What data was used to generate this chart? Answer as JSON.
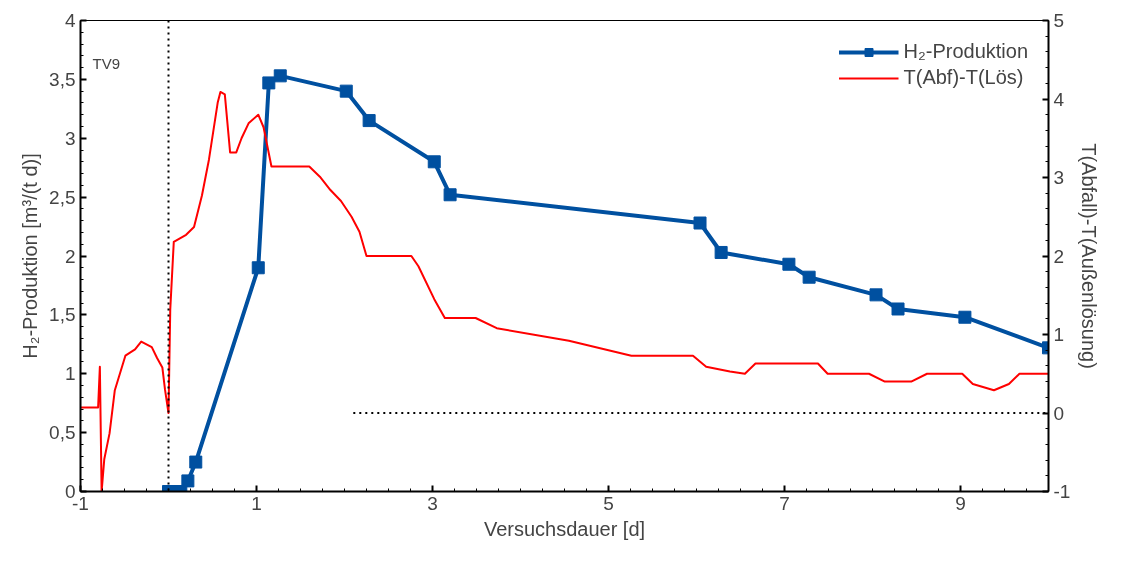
{
  "chart_data": {
    "type": "line",
    "xlabel": "Versuchsdauer [d]",
    "ylabel": "H₂-Produktion [m³/(t d)]",
    "y2label": "T(Abfall)-T(Außenlösung)",
    "annotations": [
      "TV9"
    ],
    "xlim": [
      -1,
      10
    ],
    "xticks": [
      -1,
      1,
      3,
      5,
      7,
      9
    ],
    "ylim": [
      0,
      4
    ],
    "yticks": [
      {
        "value": 0,
        "label": "0"
      },
      {
        "value": 0.5,
        "label": "0,5"
      },
      {
        "value": 1,
        "label": "1"
      },
      {
        "value": 1.5,
        "label": "1,5"
      },
      {
        "value": 2,
        "label": "2"
      },
      {
        "value": 2.5,
        "label": "2,5"
      },
      {
        "value": 3,
        "label": "3"
      },
      {
        "value": 3.5,
        "label": "3,5"
      },
      {
        "value": 4,
        "label": "4"
      }
    ],
    "y2lim": [
      -1,
      5
    ],
    "y2ticks": [
      -1,
      0,
      1,
      2,
      3,
      4,
      5
    ],
    "grid": false,
    "legend": "top right",
    "ref_lines": [
      {
        "axis": "x",
        "value": 0,
        "label": null,
        "color": "#000000",
        "line_style": "dotted"
      }
    ],
    "series": [
      {
        "name": "H₂-Produktion",
        "color": "#0050a0",
        "marker": "square",
        "x": [
          0,
          0.05,
          0.14,
          0.22,
          0.31,
          1.02,
          1.14,
          1.27,
          2.02,
          2.28,
          3.02,
          3.2,
          6.04,
          6.28,
          7.05,
          7.28,
          8.04,
          8.29,
          9.05,
          10
        ],
        "values": [
          0,
          0,
          0,
          0.09,
          0.25,
          1.9,
          3.47,
          3.53,
          3.4,
          3.15,
          2.8,
          2.52,
          2.28,
          2.03,
          1.93,
          1.82,
          1.67,
          1.55,
          1.48,
          1.22
        ]
      },
      {
        "name": "T(Abf)-T(Lös)",
        "color": "#ff0000",
        "axis": "y2",
        "marker": "none",
        "x": [
          -1,
          -0.8,
          -0.78,
          -0.76,
          -0.73,
          -0.67,
          -0.61,
          -0.49,
          -0.38,
          -0.31,
          -0.19,
          -0.13,
          -0.07,
          -0.04,
          0,
          0.02,
          0.06,
          0.2,
          0.29,
          0.38,
          0.46,
          0.56,
          0.59,
          0.64,
          0.7,
          0.77,
          0.83,
          0.91,
          1.02,
          1.08,
          1.17,
          1.25,
          1.6,
          1.72,
          1.84,
          1.96,
          2.08,
          2.17,
          2.25,
          2.43,
          2.76,
          2.84,
          3.02,
          3.14,
          3.49,
          3.73,
          4.55,
          5.26,
          5.96,
          6.11,
          6.38,
          6.55,
          6.67,
          7.38,
          7.49,
          7.96,
          8.14,
          8.44,
          8.62,
          9.02,
          9.14,
          9.38,
          9.55,
          9.67,
          10
        ],
        "values": [
          0.07,
          0.07,
          0.59,
          -1,
          -0.59,
          -0.26,
          0.29,
          0.73,
          0.81,
          0.91,
          0.84,
          0.7,
          0.58,
          0.3,
          0,
          1.32,
          2.18,
          2.27,
          2.37,
          2.77,
          3.23,
          3.96,
          4.09,
          4.06,
          3.32,
          3.32,
          3.5,
          3.69,
          3.8,
          3.64,
          3.14,
          3.14,
          3.14,
          3.01,
          2.84,
          2.7,
          2.5,
          2.31,
          2,
          2,
          2,
          1.87,
          1.45,
          1.21,
          1.21,
          1.08,
          0.92,
          0.73,
          0.73,
          0.59,
          0.53,
          0.5,
          0.63,
          0.63,
          0.5,
          0.5,
          0.4,
          0.4,
          0.5,
          0.5,
          0.37,
          0.29,
          0.37,
          0.5,
          0.5
        ]
      },
      {
        "type": "line",
        "color": "#000000",
        "axis": "y2",
        "marker": "none",
        "line_style": "dotted",
        "x": [
          2.1,
          10
        ],
        "values": [
          0,
          0
        ]
      }
    ]
  }
}
